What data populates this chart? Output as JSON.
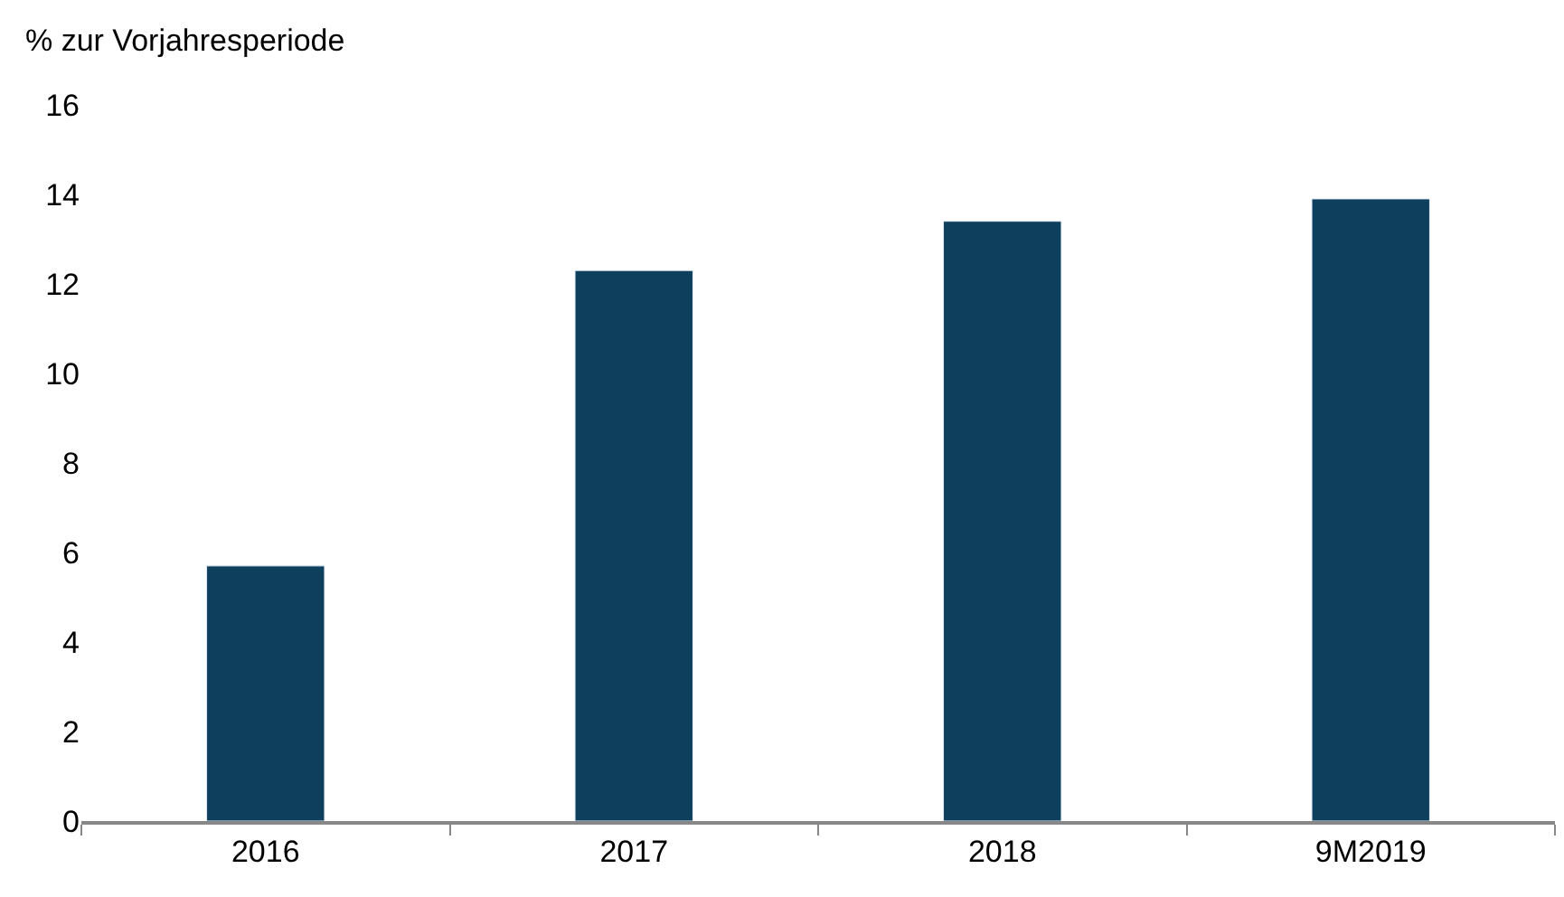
{
  "chart_data": {
    "type": "bar",
    "ylabel": "% zur Vorjahresperiode",
    "categories": [
      "2016",
      "2017",
      "2018",
      "9M2019"
    ],
    "series": [
      {
        "color": "#0e405e",
        "values": [
          5.7,
          12.3,
          13.4,
          13.9
        ]
      }
    ],
    "ylim": [
      0,
      16
    ],
    "yticks": [
      0,
      2,
      4,
      6,
      8,
      10,
      12,
      14,
      16
    ],
    "legend": false
  }
}
